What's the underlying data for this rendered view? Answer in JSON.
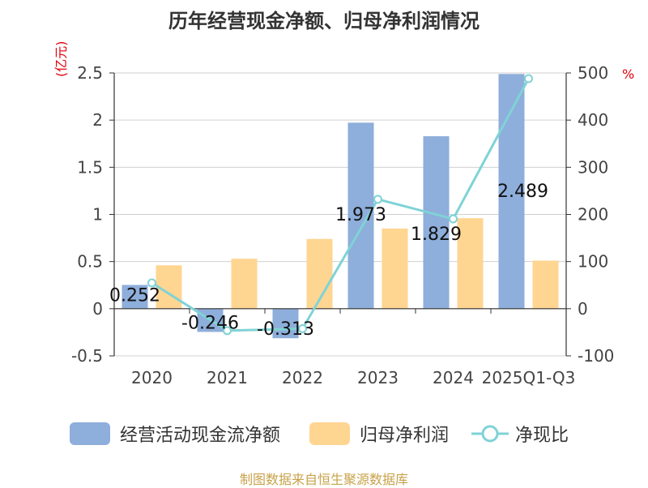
{
  "title": "历年经营现金净额、归母净利润情况",
  "y_unit": "(亿元)",
  "y2_unit": "%",
  "source": "制图数据来自恒生聚源数据库",
  "colors": {
    "op_cash": "#8eaedb",
    "net_profit": "#ffd592",
    "ratio": "#7fd3d6",
    "ratio_marker_fill": "#ffffff",
    "unit_color": "#e3000b"
  },
  "legend": [
    {
      "label": "经营活动现金流净额",
      "kind": "bar"
    },
    {
      "label": "归母净利润",
      "kind": "bar"
    },
    {
      "label": "净现比",
      "kind": "line"
    }
  ],
  "chart_data": {
    "type": "bar",
    "title": "历年经营现金净额、归母净利润情况",
    "categories": [
      "2020",
      "2021",
      "2022",
      "2023",
      "2024",
      "2025Q1-Q3"
    ],
    "series": [
      {
        "name": "经营活动现金流净额",
        "type": "bar",
        "axis": "left",
        "values": [
          0.252,
          -0.246,
          -0.313,
          1.973,
          1.829,
          2.489
        ],
        "labels": [
          "0.252",
          "-0.246",
          "-0.313",
          "1.973",
          "1.829",
          "2.489"
        ]
      },
      {
        "name": "归母净利润",
        "type": "bar",
        "axis": "left",
        "values": [
          0.46,
          0.53,
          0.74,
          0.85,
          0.96,
          0.51
        ]
      },
      {
        "name": "净现比",
        "type": "line",
        "axis": "right",
        "values": [
          54.8,
          -46.4,
          -42.3,
          232.1,
          190.5,
          488.0
        ]
      }
    ],
    "y_left": {
      "label": "(亿元)",
      "min": -0.5,
      "max": 2.5,
      "ticks": [
        -0.5,
        0,
        0.5,
        1,
        1.5,
        2,
        2.5
      ],
      "tick_labels": [
        "-0.5",
        "0",
        "0.5",
        "1",
        "1.5",
        "2",
        "2.5"
      ]
    },
    "y_right": {
      "label": "%",
      "min": -100,
      "max": 500,
      "ticks": [
        -100,
        0,
        100,
        200,
        300,
        400,
        500
      ],
      "tick_labels": [
        "-100",
        "0",
        "100",
        "200",
        "300",
        "400",
        "500"
      ]
    },
    "grid": true,
    "legend_position": "bottom"
  }
}
